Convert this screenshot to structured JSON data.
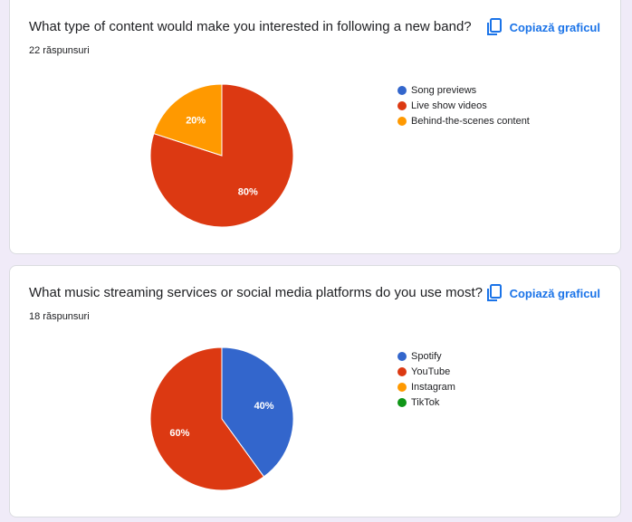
{
  "copy_label": "Copiază graficul",
  "chart_data": [
    {
      "type": "pie",
      "title": "What type of content would make you interested in following a new band?",
      "responses": "22 răspunsuri",
      "series": [
        {
          "name": "Song previews",
          "value": 0,
          "label": "",
          "color": "#3366cc"
        },
        {
          "name": "Live show videos",
          "value": 80,
          "label": "80%",
          "color": "#dc3912"
        },
        {
          "name": "Behind-the-scenes content",
          "value": 20,
          "label": "20%",
          "color": "#ff9900"
        }
      ]
    },
    {
      "type": "pie",
      "title": "What music streaming services or social media platforms do you use most?",
      "responses": "18 răspunsuri",
      "series": [
        {
          "name": "Spotify",
          "value": 40,
          "label": "40%",
          "color": "#3366cc"
        },
        {
          "name": "YouTube",
          "value": 60,
          "label": "60%",
          "color": "#dc3912"
        },
        {
          "name": "Instagram",
          "value": 0,
          "label": "",
          "color": "#ff9900"
        },
        {
          "name": "TikTok",
          "value": 0,
          "label": "",
          "color": "#109618"
        }
      ]
    }
  ]
}
